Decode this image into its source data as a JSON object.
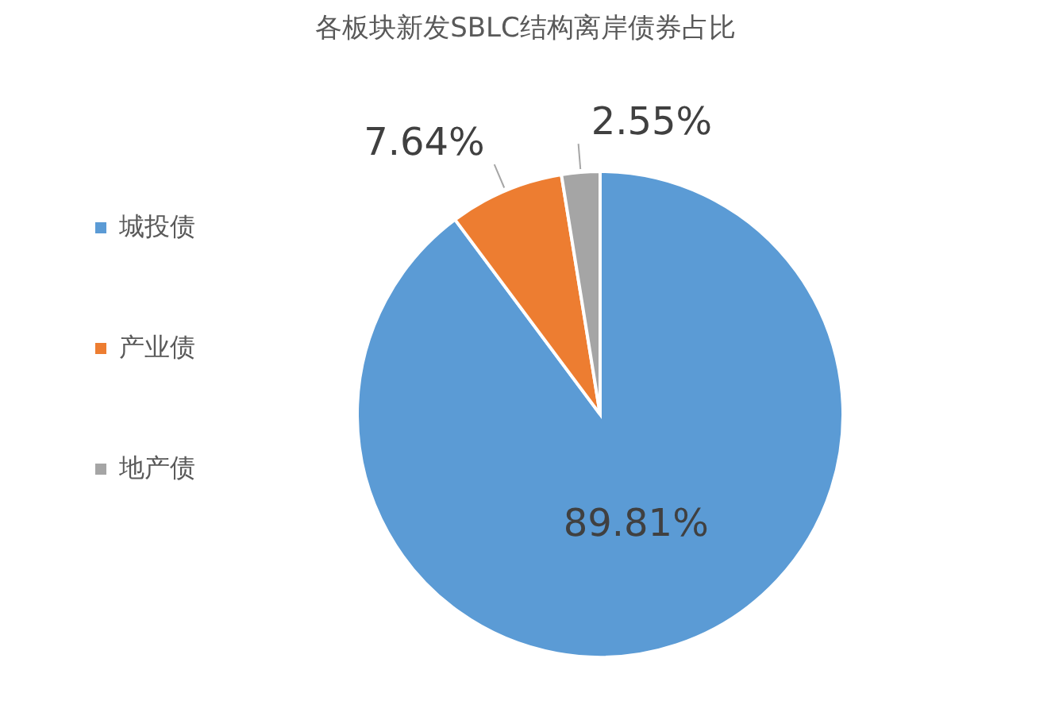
{
  "chart_data": {
    "type": "pie",
    "title": "各板块新发SBLC结构离岸债券占比",
    "categories": [
      "城投债",
      "产业债",
      "地产债"
    ],
    "values": [
      89.81,
      7.64,
      2.55
    ],
    "value_labels": [
      "89.81%",
      "7.64%",
      "2.55%"
    ],
    "colors": [
      "#5b9bd5",
      "#ed7d31",
      "#a5a5a5"
    ],
    "legend": "left"
  }
}
